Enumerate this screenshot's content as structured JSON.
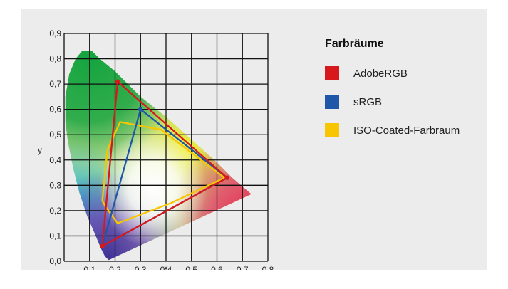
{
  "legend": {
    "title": "Farbräume",
    "items": [
      {
        "label": "AdobeRGB",
        "color": "#d7191c"
      },
      {
        "label": "sRGB",
        "color": "#1f57a8"
      },
      {
        "label": "ISO-Coated-Farbraum",
        "color": "#f7c600"
      }
    ]
  },
  "chart_data": {
    "type": "line",
    "xlabel": "x",
    "ylabel": "y",
    "xlim": [
      0,
      0.8
    ],
    "ylim": [
      0,
      0.9
    ],
    "x_ticks": [
      "0,1",
      "0,2",
      "0,3",
      "0,4",
      "0,5",
      "0,6",
      "0,7",
      "0,8"
    ],
    "y_ticks": [
      "0,0",
      "0,1",
      "0,2",
      "0,3",
      "0,4",
      "0,5",
      "0,6",
      "0,7",
      "0,8",
      "0,9"
    ],
    "grid": true,
    "series": [
      {
        "name": "AdobeRGB",
        "color": "#d7191c",
        "x": [
          0.64,
          0.21,
          0.15
        ],
        "y": [
          0.33,
          0.71,
          0.06
        ],
        "closed": true,
        "markers": true
      },
      {
        "name": "sRGB",
        "color": "#1f57a8",
        "x": [
          0.64,
          0.3,
          0.15
        ],
        "y": [
          0.33,
          0.6,
          0.06
        ],
        "closed": true,
        "markers": true
      },
      {
        "name": "ISO-Coated-Farbraum",
        "color": "#f7c600",
        "x": [
          0.63,
          0.38,
          0.22,
          0.17,
          0.15,
          0.16,
          0.21,
          0.42,
          0.63
        ],
        "y": [
          0.33,
          0.52,
          0.55,
          0.44,
          0.24,
          0.22,
          0.15,
          0.23,
          0.33
        ],
        "closed": true,
        "markers": false
      }
    ]
  }
}
